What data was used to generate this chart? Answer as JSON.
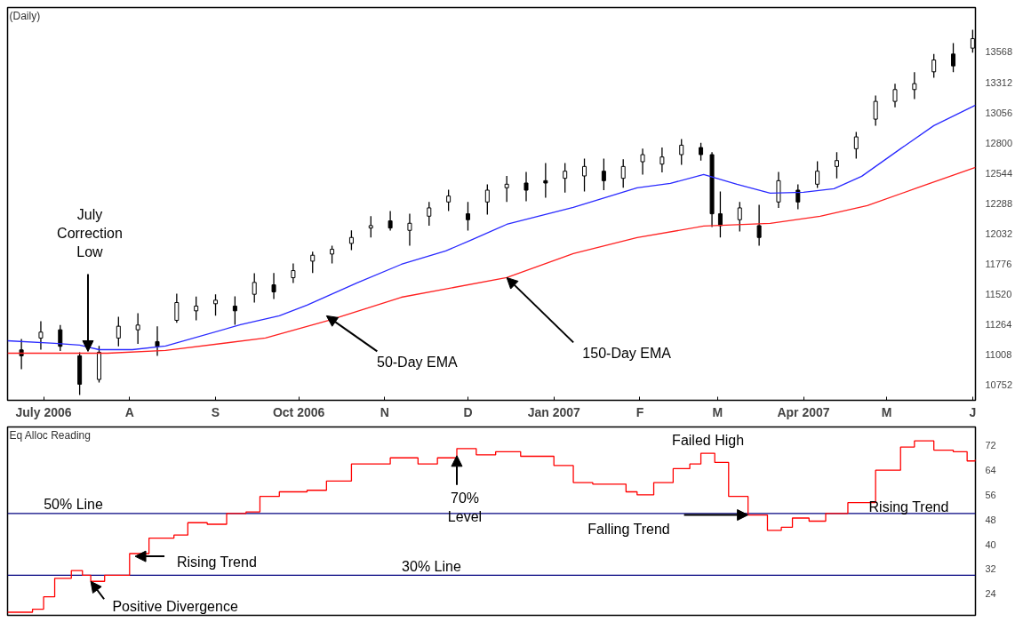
{
  "chart_data": [
    {
      "type": "candlestick",
      "title": "(Daily)",
      "color": "#000000",
      "x": [
        "2006-06-23",
        "2006-06-30",
        "2006-07-07",
        "2006-07-14",
        "2006-07-21",
        "2006-07-28",
        "2006-08-04",
        "2006-08-11",
        "2006-08-18",
        "2006-08-25",
        "2006-09-01",
        "2006-09-08",
        "2006-09-15",
        "2006-09-22",
        "2006-09-29",
        "2006-10-06",
        "2006-10-13",
        "2006-10-20",
        "2006-10-27",
        "2006-11-03",
        "2006-11-10",
        "2006-11-17",
        "2006-11-24",
        "2006-12-01",
        "2006-12-08",
        "2006-12-15",
        "2006-12-22",
        "2006-12-29",
        "2007-01-05",
        "2007-01-12",
        "2007-01-19",
        "2007-01-26",
        "2007-02-02",
        "2007-02-09",
        "2007-02-16",
        "2007-02-23",
        "2007-02-27",
        "2007-03-02",
        "2007-03-09",
        "2007-03-16",
        "2007-03-23",
        "2007-03-30",
        "2007-04-06",
        "2007-04-13",
        "2007-04-20",
        "2007-04-27",
        "2007-05-04",
        "2007-05-11",
        "2007-05-18",
        "2007-05-25",
        "2007-06-01"
      ],
      "ohlc": [
        [
          11050,
          11142,
          10887,
          11000
        ],
        [
          11150,
          11293,
          11052,
          11200
        ],
        [
          11220,
          11260,
          11040,
          11080
        ],
        [
          11000,
          11030,
          10669,
          10760
        ],
        [
          10800,
          11083,
          10775,
          11030
        ],
        [
          11150,
          11330,
          11080,
          11250
        ],
        [
          11220,
          11360,
          11100,
          11260
        ],
        [
          11120,
          11250,
          11000,
          11080
        ],
        [
          11300,
          11525,
          11280,
          11450
        ],
        [
          11380,
          11500,
          11300,
          11420
        ],
        [
          11440,
          11520,
          11340,
          11470
        ],
        [
          11420,
          11503,
          11263,
          11380
        ],
        [
          11520,
          11698,
          11450,
          11620
        ],
        [
          11600,
          11700,
          11480,
          11540
        ],
        [
          11660,
          11781,
          11616,
          11720
        ],
        [
          11800,
          11880,
          11700,
          11850
        ],
        [
          11860,
          11931,
          11781,
          11900
        ],
        [
          11950,
          12060,
          11893,
          12000
        ],
        [
          12080,
          12180,
          12000,
          12100
        ],
        [
          12140,
          12224,
          12058,
          12080
        ],
        [
          12060,
          12200,
          11931,
          12120
        ],
        [
          12180,
          12300,
          12100,
          12250
        ],
        [
          12300,
          12404,
          12224,
          12350
        ],
        [
          12200,
          12300,
          12058,
          12150
        ],
        [
          12300,
          12449,
          12194,
          12400
        ],
        [
          12420,
          12520,
          12300,
          12450
        ],
        [
          12460,
          12554,
          12306,
          12400
        ],
        [
          12480,
          12629,
          12337,
          12460
        ],
        [
          12500,
          12629,
          12380,
          12560
        ],
        [
          12520,
          12667,
          12389,
          12600
        ],
        [
          12560,
          12667,
          12400,
          12480
        ],
        [
          12500,
          12660,
          12420,
          12600
        ],
        [
          12640,
          12750,
          12532,
          12700
        ],
        [
          12620,
          12760,
          12550,
          12680
        ],
        [
          12700,
          12832,
          12614,
          12780
        ],
        [
          12760,
          12800,
          12650,
          12700
        ],
        [
          12700,
          12720,
          12089,
          12200
        ],
        [
          12200,
          12389,
          12000,
          12100
        ],
        [
          12150,
          12300,
          12050,
          12250
        ],
        [
          12100,
          12276,
          11931,
          12000
        ],
        [
          12300,
          12554,
          12250,
          12480
        ],
        [
          12400,
          12449,
          12239,
          12300
        ],
        [
          12450,
          12644,
          12419,
          12560
        ],
        [
          12600,
          12720,
          12500,
          12650
        ],
        [
          12750,
          12892,
          12667,
          12850
        ],
        [
          13000,
          13200,
          12945,
          13150
        ],
        [
          13150,
          13300,
          13100,
          13250
        ],
        [
          13250,
          13396,
          13170,
          13300
        ],
        [
          13400,
          13550,
          13350,
          13500
        ],
        [
          13550,
          13643,
          13396,
          13450
        ],
        [
          13600,
          13756,
          13561,
          13680
        ]
      ],
      "series": [
        {
          "type": "line",
          "color": "#2a2aff",
          "x": [
            "2006-06-18",
            "2006-07-05",
            "2006-07-14",
            "2006-07-21",
            "2006-08-02",
            "2006-08-14",
            "2006-09-10",
            "2006-09-24",
            "2006-10-04",
            "2006-10-22",
            "2006-11-07",
            "2006-11-23",
            "2006-12-02",
            "2006-12-15",
            "2007-01-08",
            "2007-01-31",
            "2007-02-12",
            "2007-02-24",
            "2007-03-08",
            "2007-03-20",
            "2007-04-01",
            "2007-04-12",
            "2007-04-22",
            "2007-05-06",
            "2007-05-18",
            "2007-06-02"
          ],
          "values": [
            11127,
            11105,
            11090,
            11052,
            11052,
            11083,
            11263,
            11338,
            11428,
            11616,
            11773,
            11886,
            11976,
            12111,
            12254,
            12419,
            12457,
            12532,
            12449,
            12374,
            12382,
            12412,
            12517,
            12750,
            12945,
            13118
          ]
        },
        {
          "type": "line",
          "color": "#ff2020",
          "x": [
            "2006-06-18",
            "2006-07-24",
            "2006-08-14",
            "2006-09-19",
            "2006-10-12",
            "2006-11-07",
            "2006-12-15",
            "2007-01-08",
            "2007-01-31",
            "2007-02-24",
            "2007-03-20",
            "2007-04-07",
            "2007-04-24",
            "2007-05-12",
            "2007-06-02"
          ],
          "values": [
            11022,
            11022,
            11045,
            11150,
            11300,
            11495,
            11661,
            11864,
            11999,
            12096,
            12119,
            12179,
            12269,
            12419,
            12592
          ]
        }
      ],
      "xlim": [
        "2006-06-18",
        "2007-06-02"
      ],
      "xticks": [
        {
          "value": "2006-07-01",
          "label": "July 2006"
        },
        {
          "value": "2006-08-01",
          "label": "A"
        },
        {
          "value": "2006-09-01",
          "label": "S"
        },
        {
          "value": "2006-10-01",
          "label": "Oct 2006"
        },
        {
          "value": "2006-11-01",
          "label": "N"
        },
        {
          "value": "2006-12-01",
          "label": "D"
        },
        {
          "value": "2007-01-01",
          "label": "Jan 2007"
        },
        {
          "value": "2007-02-01",
          "label": "F"
        },
        {
          "value": "2007-03-01",
          "label": "M"
        },
        {
          "value": "2007-04-01",
          "label": "Apr 2007"
        },
        {
          "value": "2007-05-01",
          "label": "M"
        },
        {
          "value": "2007-06-01",
          "label": "J"
        }
      ],
      "ylim": [
        10624,
        13943
      ],
      "yticks": [
        10752,
        11008,
        11264,
        11520,
        11776,
        12032,
        12288,
        12544,
        12800,
        13056,
        13312,
        13568
      ],
      "annotations": [
        {
          "text": "July\nCorrection\nLow",
          "x": "2006-07-17",
          "y": 11037
        },
        {
          "text": "50-Day EMA",
          "x": "2006-10-11",
          "y": 11338
        },
        {
          "text": "150-Day EMA",
          "x": "2006-12-15",
          "y": 11661
        }
      ]
    },
    {
      "type": "step",
      "title": "Eq Alloc Reading",
      "color": "#ff0000",
      "tick_labels": "y",
      "x": [
        "2006-06-18",
        "2006-06-27",
        "2006-07-01",
        "2006-07-05",
        "2006-07-11",
        "2006-07-15",
        "2006-07-18",
        "2006-07-23",
        "2006-08-01",
        "2006-08-08",
        "2006-08-17",
        "2006-08-22",
        "2006-08-29",
        "2006-09-05",
        "2006-09-12",
        "2006-09-17",
        "2006-09-24",
        "2006-10-04",
        "2006-10-11",
        "2006-10-20",
        "2006-10-27",
        "2006-11-03",
        "2006-11-13",
        "2006-11-20",
        "2006-11-27",
        "2006-12-04",
        "2006-12-11",
        "2006-12-20",
        "2007-01-01",
        "2007-01-08",
        "2007-01-15",
        "2007-01-27",
        "2007-01-31",
        "2007-02-06",
        "2007-02-13",
        "2007-02-19",
        "2007-02-23",
        "2007-02-28",
        "2007-03-05",
        "2007-03-12",
        "2007-03-19",
        "2007-03-24",
        "2007-03-28",
        "2007-04-03",
        "2007-04-09",
        "2007-04-17",
        "2007-04-27",
        "2007-05-06",
        "2007-05-11",
        "2007-05-18",
        "2007-05-25",
        "2007-05-30",
        "2007-06-02"
      ],
      "values": [
        18,
        19,
        23,
        29,
        31.5,
        30,
        28,
        30,
        37,
        42,
        43,
        47,
        46.5,
        50,
        50.5,
        55.5,
        57,
        57.5,
        60.5,
        66,
        66,
        68,
        66,
        68,
        71,
        69,
        70,
        68.5,
        65.5,
        60,
        59.5,
        57,
        56,
        60,
        64.5,
        66,
        69.5,
        66.5,
        55.5,
        49.5,
        44.5,
        45.5,
        48.5,
        47.5,
        50,
        53.5,
        64,
        71.5,
        73.5,
        70.5,
        70,
        67,
        67.5
      ],
      "xlim": [
        "2006-06-18",
        "2007-06-02"
      ],
      "ylim": [
        17,
        78
      ],
      "yticks": [
        24,
        32,
        40,
        48,
        56,
        64,
        72
      ],
      "ref_lines": [
        {
          "axis": "y",
          "value": 50,
          "label": "50% Line",
          "color": "#000080"
        },
        {
          "axis": "y",
          "value": 30,
          "label": "30% Line",
          "color": "#000080"
        }
      ],
      "annotations": [
        {
          "text": "Failed High",
          "x": "2007-02-23",
          "y": 69.5
        },
        {
          "text": "70%\nLevel",
          "x": "2006-11-27",
          "y": 68.7
        },
        {
          "text": "Rising Trend",
          "x": "2006-08-03",
          "y": 36.1
        },
        {
          "text": "Positive Divergence",
          "x": "2006-07-18",
          "y": 28
        },
        {
          "text": "Falling Trend",
          "x": "2007-03-12",
          "y": 49.5
        },
        {
          "text": "Rising Trend",
          "x": "2007-05-09",
          "y": 50.5
        }
      ]
    }
  ]
}
